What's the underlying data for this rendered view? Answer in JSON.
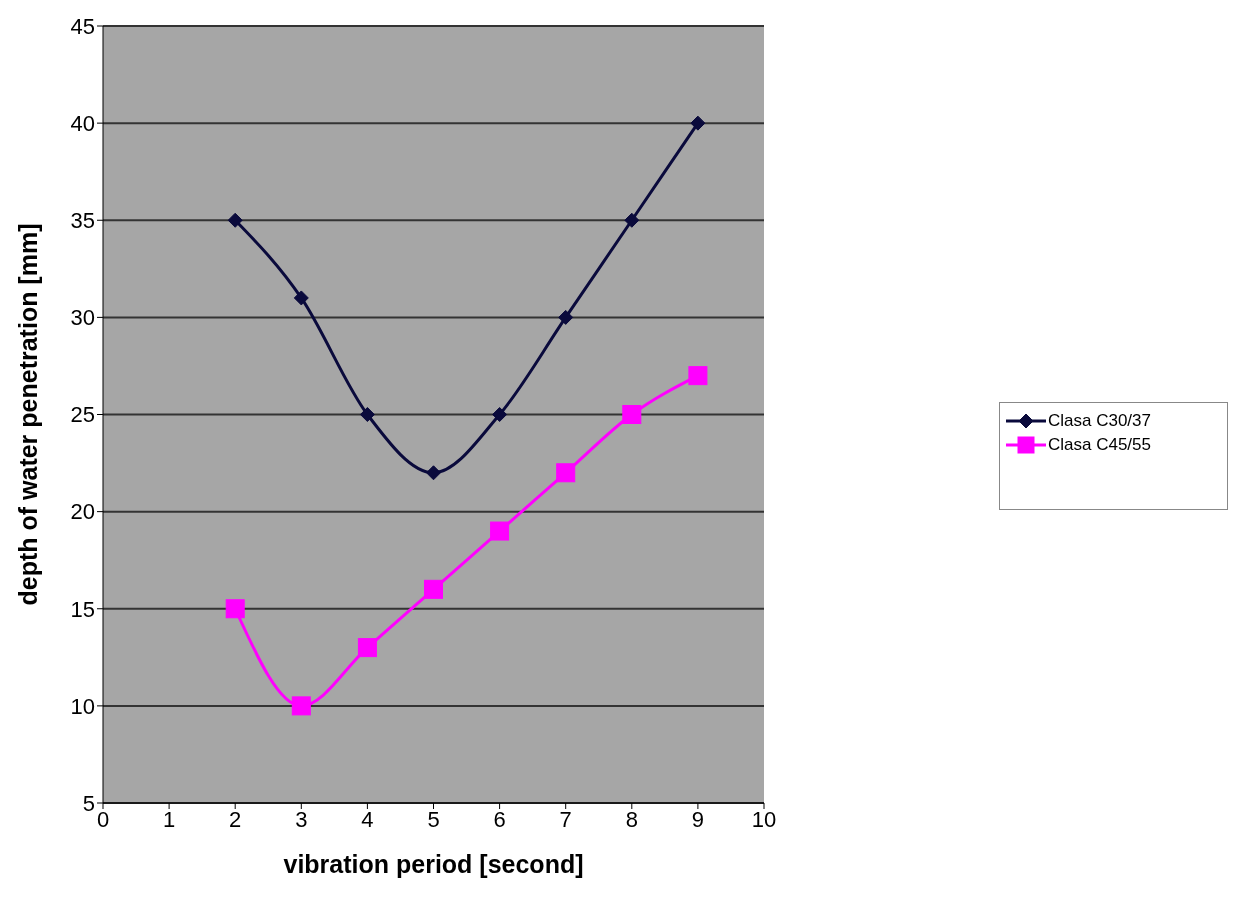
{
  "chart_data": {
    "type": "line",
    "xlabel": "vibration period [second]",
    "ylabel": "depth of water penetration [mm]",
    "x": [
      2,
      3,
      4,
      5,
      6,
      7,
      8,
      9
    ],
    "series": [
      {
        "name": "Clasa C30/37",
        "color": "#0a0a3c",
        "marker": "diamond",
        "values": [
          35,
          31,
          25,
          22,
          25,
          30,
          35,
          40
        ]
      },
      {
        "name": "Clasa C45/55",
        "color": "#ff00ff",
        "marker": "square",
        "values": [
          15,
          10,
          13,
          16,
          19,
          22,
          25,
          27
        ]
      }
    ],
    "xlim": [
      0,
      10
    ],
    "xticks": [
      0,
      1,
      2,
      3,
      4,
      5,
      6,
      7,
      8,
      9,
      10
    ],
    "ylim": [
      5,
      45
    ],
    "yticks": [
      5,
      10,
      15,
      20,
      25,
      30,
      35,
      40,
      45
    ],
    "grid": "y",
    "legend": "right",
    "line_style": "solid"
  }
}
